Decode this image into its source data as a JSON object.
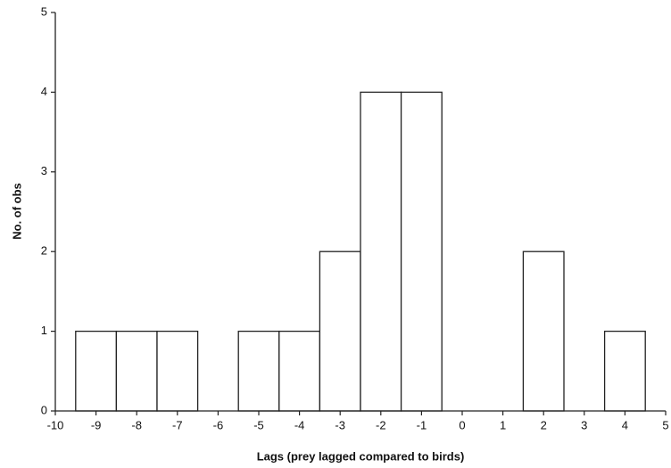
{
  "chart_data": {
    "type": "histogram",
    "x_label": "Lags (prey lagged compared to birds)",
    "y_label": "No. of obs",
    "bins": [
      -9.5,
      -8.5,
      -7.5,
      -6.5,
      -5.5,
      -4.5,
      -3.5,
      -2.5,
      -1.5,
      -0.5,
      0.5,
      1.5,
      2.5,
      3.5,
      4.5
    ],
    "values": [
      1,
      1,
      1,
      0,
      1,
      1,
      2,
      4,
      4,
      0,
      0,
      2,
      0,
      1
    ],
    "color": "#ffffff",
    "xlim": [
      -10,
      5
    ],
    "xticks": [
      -10,
      -9,
      -8,
      -7,
      -6,
      -5,
      -4,
      -3,
      -2,
      -1,
      0,
      1,
      2,
      3,
      4,
      5
    ],
    "ylim": [
      0,
      5
    ],
    "yticks": [
      0,
      1,
      2,
      3,
      4,
      5
    ]
  }
}
